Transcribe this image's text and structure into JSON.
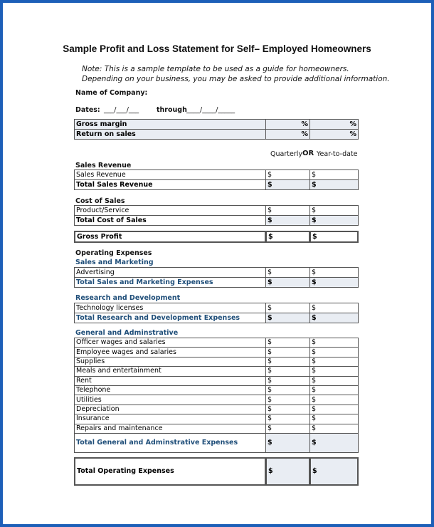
{
  "title": "Sample Profit and Loss Statement for Self– Employed Homeowners",
  "note": [
    "Note: This is a sample template to be used as a guide for homeowners.",
    "Depending on your business, you may be asked to provide additional information."
  ],
  "company_label": "Name of Company:",
  "dates": {
    "label": "Dates:",
    "from": "___/___/___",
    "through": "through",
    "to": "____/____/_____"
  },
  "ratios": [
    {
      "label": "Gross margin",
      "cols": [
        "%",
        "%"
      ]
    },
    {
      "label": "Return on sales",
      "cols": [
        "%",
        "%"
      ]
    }
  ],
  "period": {
    "first": "Quarterly",
    "or": "OR",
    "second": "Year-to-date"
  },
  "sales_revenue": {
    "heading": "Sales Revenue",
    "rows": [
      {
        "label": "Sales Revenue",
        "cols": [
          "$",
          "$"
        ]
      }
    ],
    "total": {
      "label": "Total Sales Revenue",
      "cols": [
        "$",
        "$"
      ]
    }
  },
  "cost_of_sales": {
    "heading": "Cost of Sales",
    "rows": [
      {
        "label": "Product/Service",
        "cols": [
          "$",
          "$"
        ]
      }
    ],
    "total": {
      "label": "Total Cost of Sales",
      "cols": [
        "$",
        "$"
      ]
    }
  },
  "gross_profit": {
    "label": "Gross Profit",
    "cols": [
      "$",
      "$"
    ]
  },
  "operating_expenses": {
    "heading": "Operating Expenses",
    "groups": [
      {
        "heading": "Sales and Marketing",
        "rows": [
          {
            "label": "Advertising",
            "cols": [
              "$",
              "$"
            ]
          }
        ],
        "total": {
          "label": "Total Sales and Marketing Expenses",
          "cols": [
            "$",
            "$"
          ]
        }
      },
      {
        "heading": "Research and Development",
        "rows": [
          {
            "label": "Technology licenses",
            "cols": [
              "$",
              "$"
            ]
          }
        ],
        "total": {
          "label": "Total Research and Development Expenses",
          "cols": [
            "$",
            "$"
          ]
        }
      },
      {
        "heading": "General and Adminstrative",
        "rows": [
          {
            "label": "Officer wages and salaries",
            "cols": [
              "$",
              "$"
            ]
          },
          {
            "label": "Employee wages and salaries",
            "cols": [
              "$",
              "$"
            ]
          },
          {
            "label": "Supplies",
            "cols": [
              "$",
              "$"
            ]
          },
          {
            "label": "Meals and entertainment",
            "cols": [
              "$",
              "$"
            ]
          },
          {
            "label": "Rent",
            "cols": [
              "$",
              "$"
            ]
          },
          {
            "label": "Telephone",
            "cols": [
              "$",
              "$"
            ]
          },
          {
            "label": "Utilities",
            "cols": [
              "$",
              "$"
            ]
          },
          {
            "label": "Depreciation",
            "cols": [
              "$",
              "$"
            ]
          },
          {
            "label": "Insurance",
            "cols": [
              "$",
              "$"
            ]
          },
          {
            "label": "Repairs and maintenance",
            "cols": [
              "$",
              "$"
            ]
          }
        ],
        "total": {
          "label": "Total General and Adminstrative Expenses",
          "cols": [
            "$",
            "$"
          ]
        }
      }
    ],
    "total": {
      "label": "Total Operating Expenses",
      "cols": [
        "$",
        "$"
      ]
    }
  }
}
